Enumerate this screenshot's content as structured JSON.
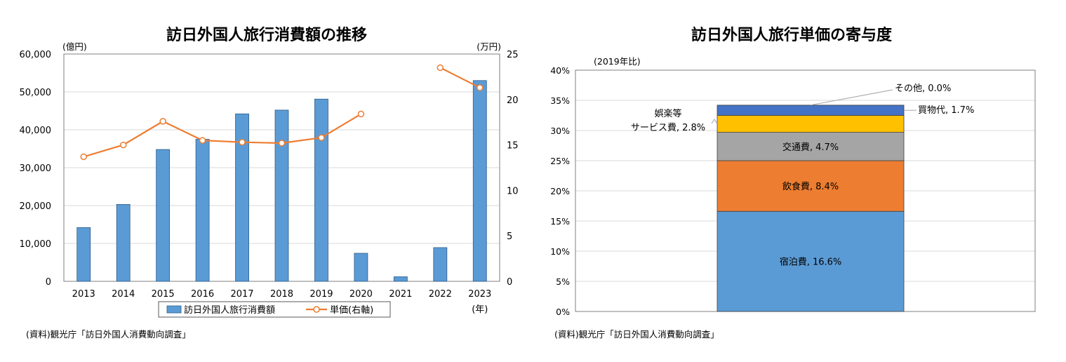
{
  "left_chart": {
    "title": "訪日外国人旅行消費額の推移",
    "unit_left": "(億円)",
    "unit_right": "(万円)",
    "x_unit": "(年)",
    "source": "(資料)観光庁「訪日外国人消費動向調査」",
    "bar_color": "#5b9bd5",
    "line_color": "#ed7d31"
  },
  "right_chart": {
    "title": "訪日外国人旅行単価の寄与度",
    "unit": "(2019年比)",
    "source": "(資料)観光庁「訪日外国人消費動向調査」"
  },
  "chart_data": [
    {
      "type": "bar",
      "title": "訪日外国人旅行消費額の推移",
      "categories": [
        "2013",
        "2014",
        "2015",
        "2016",
        "2017",
        "2018",
        "2019",
        "2020",
        "2021",
        "2022",
        "2023"
      ],
      "series": [
        {
          "name": "訪日外国人旅行消費額",
          "axis": "left",
          "values": [
            14200,
            20300,
            34800,
            37500,
            44200,
            45200,
            48100,
            7400,
            1200,
            8900,
            53000
          ]
        },
        {
          "name": "単価(右軸)",
          "axis": "right",
          "type": "line",
          "values": [
            13.7,
            15.0,
            17.6,
            15.5,
            15.3,
            15.2,
            15.8,
            18.4,
            null,
            23.5,
            21.3
          ]
        }
      ],
      "y_left": {
        "min": 0,
        "max": 60000,
        "ticks": [
          "0",
          "10,000",
          "20,000",
          "30,000",
          "40,000",
          "50,000",
          "60,000"
        ]
      },
      "y_right": {
        "min": 0,
        "max": 25,
        "ticks": [
          "0",
          "5",
          "10",
          "15",
          "20",
          "25"
        ]
      },
      "legend_position": "bottom"
    },
    {
      "type": "bar",
      "stacked": true,
      "title": "訪日外国人旅行単価の寄与度",
      "ylim": [
        0,
        40
      ],
      "y_ticks": [
        "0%",
        "5%",
        "10%",
        "15%",
        "20%",
        "25%",
        "30%",
        "35%",
        "40%"
      ],
      "segments": [
        {
          "name": "宿泊費",
          "value": 16.6,
          "label": "宿泊費, 16.6%",
          "color": "#5b9bd5"
        },
        {
          "name": "飲食費",
          "value": 8.4,
          "label": "飲食費, 8.4%",
          "color": "#ed7d31"
        },
        {
          "name": "交通費",
          "value": 4.7,
          "label": "交通費, 4.7%",
          "color": "#a5a5a5"
        },
        {
          "name": "娯楽等サービス費",
          "value": 2.8,
          "label_line1": "娯楽等",
          "label_line2": "サービス費, 2.8%",
          "color": "#ffc000"
        },
        {
          "name": "買物代",
          "value": 1.7,
          "label": "買物代, 1.7%",
          "color": "#4472c4"
        },
        {
          "name": "その他",
          "value": 0.0,
          "label": "その他, 0.0%",
          "color": "#70ad47"
        }
      ]
    }
  ]
}
